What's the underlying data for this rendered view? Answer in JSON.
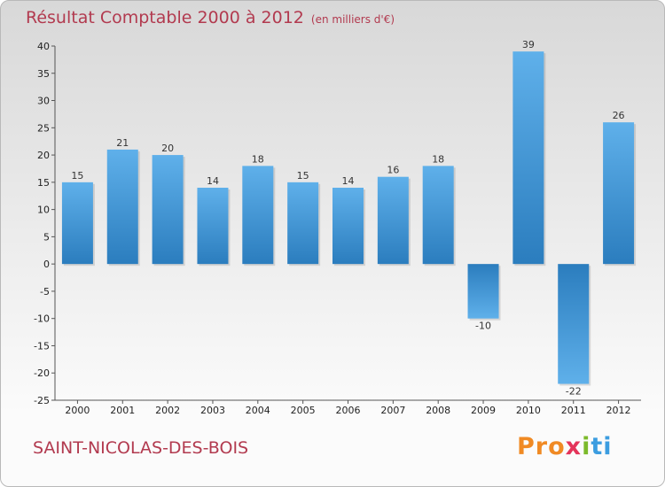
{
  "header": {
    "title": "Résultat Comptable 2000 à 2012",
    "subtitle": "(en milliers d'€)"
  },
  "footer": {
    "commune": "SAINT-NICOLAS-DES-BOIS",
    "logo_parts": [
      "Pro",
      "x",
      "i",
      "ti"
    ]
  },
  "colors": {
    "bar_top": "#5fb0ea",
    "bar_bottom": "#2b7dbe",
    "title": "#b23a4f"
  },
  "chart_data": {
    "type": "bar",
    "title": "Résultat Comptable 2000 à 2012",
    "ylabel": "en milliers d'€",
    "xlabel": "",
    "categories": [
      "2000",
      "2001",
      "2002",
      "2003",
      "2004",
      "2005",
      "2006",
      "2007",
      "2008",
      "2009",
      "2010",
      "2011",
      "2012"
    ],
    "values": [
      15,
      21,
      20,
      14,
      18,
      15,
      14,
      16,
      18,
      -10,
      39,
      -22,
      26
    ],
    "ylim": [
      -25,
      40
    ],
    "yticks": [
      40,
      35,
      30,
      25,
      20,
      15,
      10,
      5,
      0,
      -5,
      -10,
      -15,
      -20,
      -25
    ],
    "grid": false,
    "legend": "none"
  }
}
